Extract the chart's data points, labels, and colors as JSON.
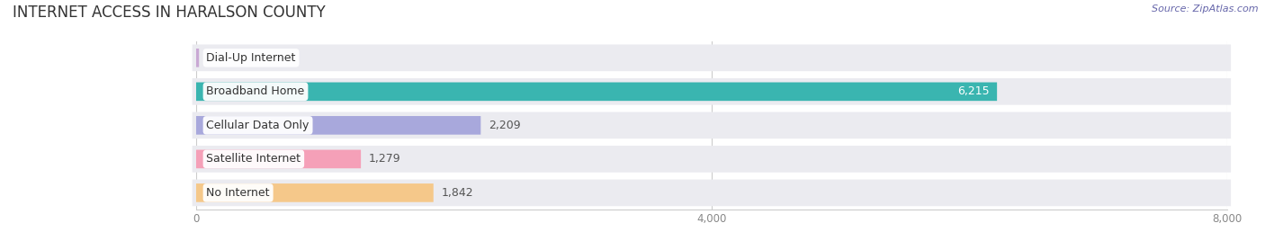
{
  "title": "INTERNET ACCESS IN HARALSON COUNTY",
  "source": "Source: ZipAtlas.com",
  "categories": [
    "Dial-Up Internet",
    "Broadband Home",
    "Cellular Data Only",
    "Satellite Internet",
    "No Internet"
  ],
  "values": [
    23,
    6215,
    2209,
    1279,
    1842
  ],
  "bar_colors": [
    "#c9a8d4",
    "#3ab5b0",
    "#a8a8dc",
    "#f5a0b8",
    "#f5c88a"
  ],
  "row_bg_color": "#ebebf0",
  "xlim": [
    0,
    8000
  ],
  "xticks": [
    0,
    4000,
    8000
  ],
  "background_color": "#ffffff",
  "title_fontsize": 12,
  "label_fontsize": 9,
  "value_fontsize": 9,
  "source_fontsize": 8
}
